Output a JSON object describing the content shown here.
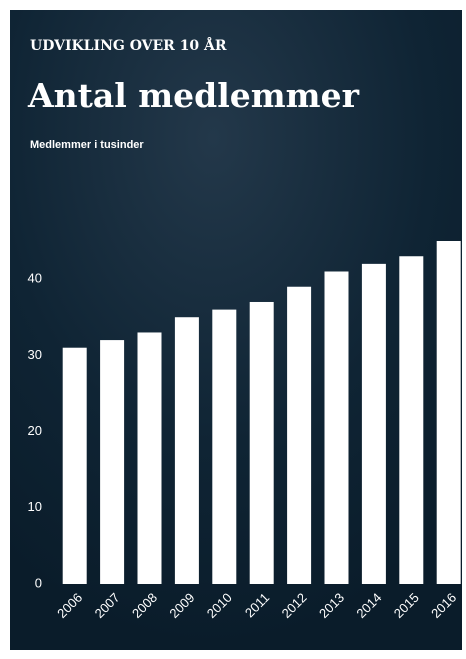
{
  "chart_data": {
    "type": "bar",
    "kicker": "UDVIKLING OVER 10 ÅR",
    "title": "Antal medlemmer",
    "subtitle": "Medlemmer i tusinder",
    "categories": [
      "2006",
      "2007",
      "2008",
      "2009",
      "2010",
      "2011",
      "2012",
      "2013",
      "2014",
      "2015",
      "2016"
    ],
    "values": [
      31,
      32,
      33,
      35,
      36,
      37,
      39,
      41,
      42,
      43,
      45
    ],
    "color": "#ffffff",
    "ylim": [
      0,
      45
    ],
    "yticks": [
      0,
      10,
      20,
      30,
      40
    ],
    "grid": false
  }
}
